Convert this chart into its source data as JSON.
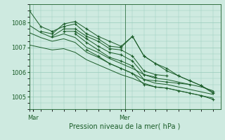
{
  "xlabel": "Pression niveau de la mer( hPa )",
  "bg_color": "#ceeae0",
  "plot_bg_color": "#ceeae0",
  "grid_color": "#99ccbb",
  "line_color": "#1a5c28",
  "x_ticks": [
    0,
    24
  ],
  "x_tick_labels": [
    "Mar",
    "Mer"
  ],
  "ylim": [
    1004.6,
    1008.7
  ],
  "yticks": [
    1005,
    1006,
    1007,
    1008
  ],
  "xlim": [
    -1,
    49
  ],
  "vline_x": 24,
  "series": [
    {
      "x": [
        -1,
        2,
        5,
        8,
        11,
        14,
        17,
        20,
        23,
        26,
        29,
        32,
        35,
        38,
        41,
        44,
        47
      ],
      "y": [
        1008.5,
        1007.85,
        1007.65,
        1007.85,
        1007.95,
        1007.55,
        1007.35,
        1007.05,
        1007.0,
        1007.45,
        1006.65,
        1006.35,
        1006.05,
        1005.85,
        1005.65,
        1005.45,
        1005.15
      ],
      "marker": true
    },
    {
      "x": [
        -1,
        2,
        5,
        8,
        11,
        14,
        17,
        20,
        23,
        26,
        29,
        32,
        35,
        38,
        41,
        44,
        47
      ],
      "y": [
        1007.9,
        1007.6,
        1007.4,
        1007.55,
        1007.4,
        1007.0,
        1006.8,
        1006.55,
        1006.35,
        1006.15,
        1005.9,
        1005.75,
        1005.7,
        1005.6,
        1005.5,
        1005.4,
        1005.25
      ],
      "marker": false
    },
    {
      "x": [
        -1,
        2,
        5,
        8,
        11,
        14,
        17,
        20,
        23,
        26,
        29,
        32,
        35,
        38,
        41,
        44,
        47
      ],
      "y": [
        1007.6,
        1007.4,
        1007.25,
        1007.35,
        1007.2,
        1006.8,
        1006.6,
        1006.35,
        1006.15,
        1005.95,
        1005.7,
        1005.55,
        1005.5,
        1005.4,
        1005.3,
        1005.2,
        1005.1
      ],
      "marker": false
    },
    {
      "x": [
        -1,
        2,
        5,
        8,
        11,
        14,
        17,
        20,
        23,
        26,
        29,
        32,
        35,
        38,
        41,
        44,
        47
      ],
      "y": [
        1007.1,
        1007.0,
        1006.9,
        1006.95,
        1006.8,
        1006.5,
        1006.3,
        1006.1,
        1005.9,
        1005.75,
        1005.55,
        1005.4,
        1005.35,
        1005.25,
        1005.15,
        1005.05,
        1004.95
      ],
      "marker": false
    },
    {
      "x": [
        2,
        5,
        8,
        11,
        14,
        17,
        20,
        23,
        26,
        29,
        32,
        35,
        38,
        41,
        44,
        47
      ],
      "y": [
        1007.65,
        1007.55,
        1007.95,
        1008.05,
        1007.75,
        1007.45,
        1007.25,
        1007.05,
        1007.45,
        1006.65,
        1006.35,
        1006.15,
        1005.85,
        1005.65,
        1005.45,
        1005.2
      ],
      "marker": true
    },
    {
      "x": [
        5,
        8,
        11,
        14,
        17,
        20,
        23,
        26,
        29,
        32,
        35
      ],
      "y": [
        1007.45,
        1007.75,
        1007.75,
        1007.45,
        1007.25,
        1006.95,
        1006.9,
        1006.65,
        1006.05,
        1005.9,
        1005.85
      ],
      "marker": true
    },
    {
      "x": [
        8,
        11,
        14,
        17,
        20,
        23,
        26,
        29,
        32
      ],
      "y": [
        1007.65,
        1007.65,
        1007.35,
        1007.05,
        1006.8,
        1006.7,
        1006.45,
        1005.9,
        1005.8
      ],
      "marker": true
    },
    {
      "x": [
        11,
        14,
        17,
        20,
        23,
        26,
        29,
        32,
        35,
        38,
        41
      ],
      "y": [
        1007.55,
        1007.2,
        1006.9,
        1006.6,
        1006.45,
        1006.25,
        1005.7,
        1005.65,
        1005.6,
        1005.55,
        1005.5
      ],
      "marker": true
    },
    {
      "x": [
        14,
        17,
        20,
        23,
        26,
        29,
        32,
        35,
        38,
        41,
        44,
        47
      ],
      "y": [
        1006.9,
        1006.65,
        1006.35,
        1006.15,
        1005.95,
        1005.5,
        1005.4,
        1005.35,
        1005.25,
        1005.15,
        1005.05,
        1004.9
      ],
      "marker": true
    }
  ]
}
